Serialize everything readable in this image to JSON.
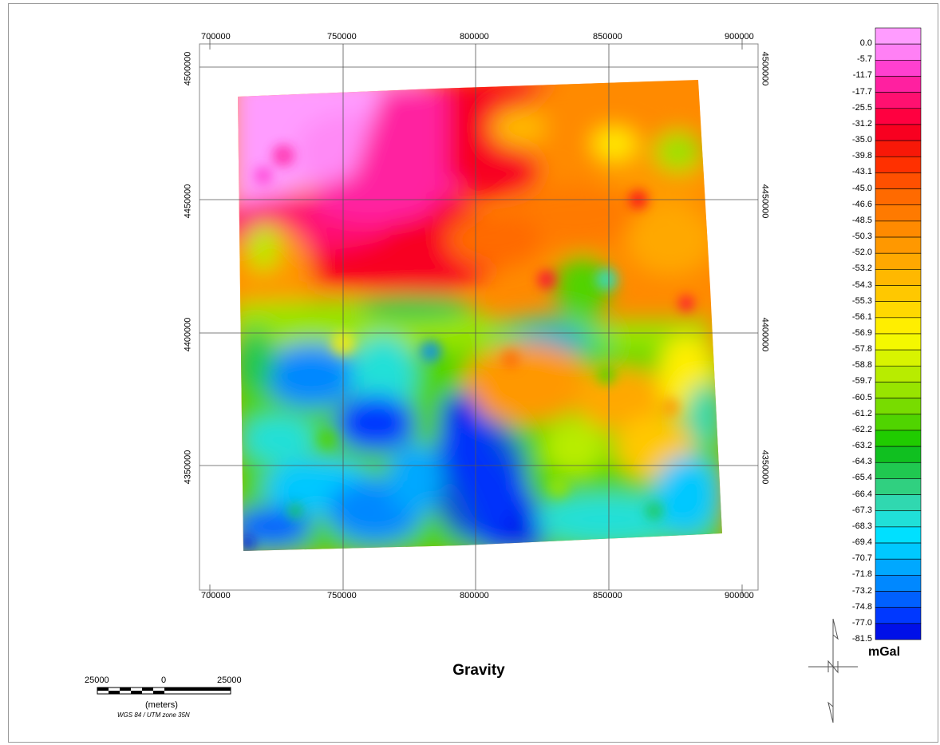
{
  "map": {
    "title": "Gravity",
    "x_ticks": [
      "700000",
      "750000",
      "800000",
      "850000",
      "900000"
    ],
    "y_ticks": [
      "4500000",
      "4450000",
      "4400000",
      "4350000"
    ],
    "grid": true
  },
  "legend": {
    "unit": "mGal",
    "labels": [
      "0.0",
      "-5.7",
      "-11.7",
      "-17.7",
      "-25.5",
      "-31.2",
      "-35.0",
      "-39.8",
      "-43.1",
      "-45.0",
      "-46.6",
      "-48.5",
      "-50.3",
      "-52.0",
      "-53.2",
      "-54.3",
      "-55.3",
      "-56.1",
      "-56.9",
      "-57.8",
      "-58.8",
      "-59.7",
      "-60.5",
      "-61.2",
      "-62.2",
      "-63.2",
      "-64.3",
      "-65.4",
      "-66.4",
      "-67.3",
      "-68.3",
      "-69.4",
      "-70.7",
      "-71.8",
      "-73.2",
      "-74.8",
      "-77.0",
      "-81.5"
    ],
    "colors": [
      "#ff9cff",
      "#ff80f5",
      "#ff40d0",
      "#ff20a0",
      "#ff1070",
      "#ff0040",
      "#f80020",
      "#f81808",
      "#ff3000",
      "#ff5000",
      "#ff6a00",
      "#ff7a00",
      "#ff8a00",
      "#ff9800",
      "#ffa800",
      "#ffb800",
      "#ffc800",
      "#ffd800",
      "#ffee00",
      "#f4f800",
      "#d8f400",
      "#b8ec00",
      "#98e400",
      "#78dc00",
      "#50d400",
      "#20cc00",
      "#10c020",
      "#20c850",
      "#30d080",
      "#30d8b0",
      "#20e0d8",
      "#00e0ff",
      "#00c8ff",
      "#00a8ff",
      "#0088ff",
      "#0060ff",
      "#0038ff",
      "#0010e8"
    ]
  },
  "scalebar": {
    "left_label": "25000",
    "center_label": "0",
    "right_label": "25000",
    "unit_label": "(meters)",
    "projection": "WGS 84 / UTM zone 35N"
  },
  "north_arrow": {
    "label": "N"
  }
}
